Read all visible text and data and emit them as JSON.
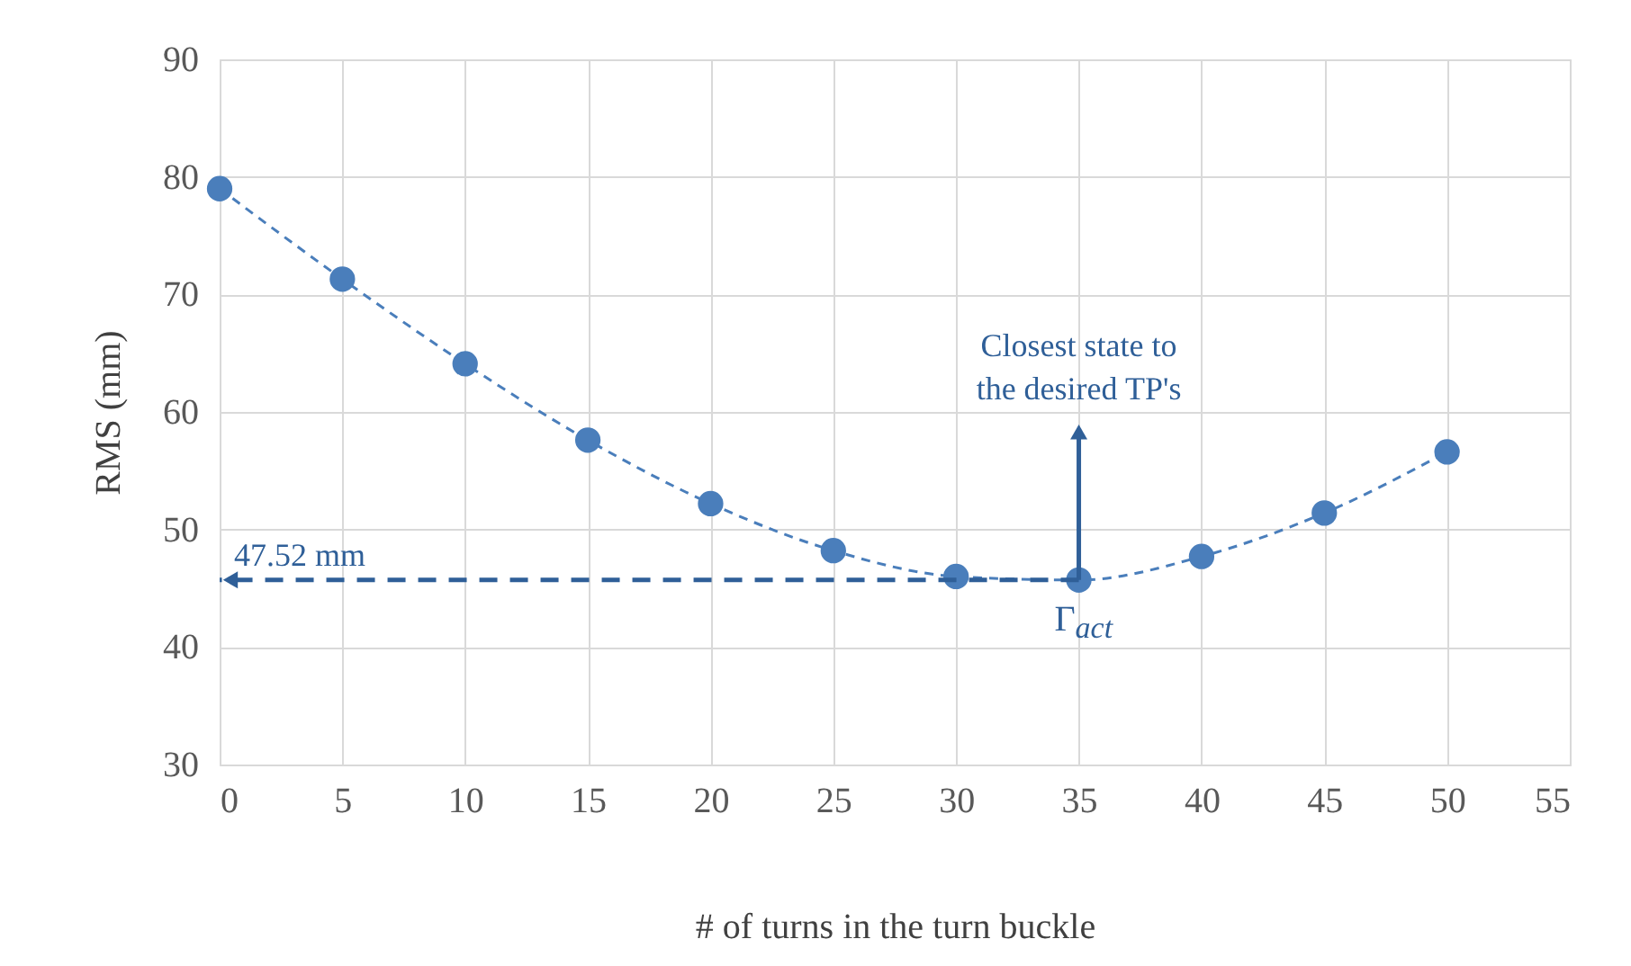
{
  "chart_data": {
    "type": "line",
    "xlabel": "# of turns in the turn buckle",
    "ylabel": "RMS (mm)",
    "x": [
      0,
      5,
      10,
      15,
      20,
      25,
      30,
      35,
      40,
      45,
      50
    ],
    "series": [
      {
        "color": "#4a7ebb",
        "values": [
          79.0,
          71.3,
          64.1,
          57.6,
          52.2,
          48.2,
          46.0,
          45.7,
          47.7,
          51.4,
          56.6
        ]
      }
    ],
    "marker": "circle",
    "line_style": "dashed",
    "xlim": [
      0,
      55
    ],
    "xticks": [
      0,
      5,
      10,
      15,
      20,
      25,
      30,
      35,
      40,
      45,
      50,
      55
    ],
    "ylim": [
      30,
      90
    ],
    "yticks": [
      30,
      40,
      50,
      60,
      70,
      80,
      90
    ],
    "grid": true,
    "annotations": [
      "47.52 mm",
      "Closest state to the desired TP's",
      "Γ$_{act}$"
    ]
  }
}
